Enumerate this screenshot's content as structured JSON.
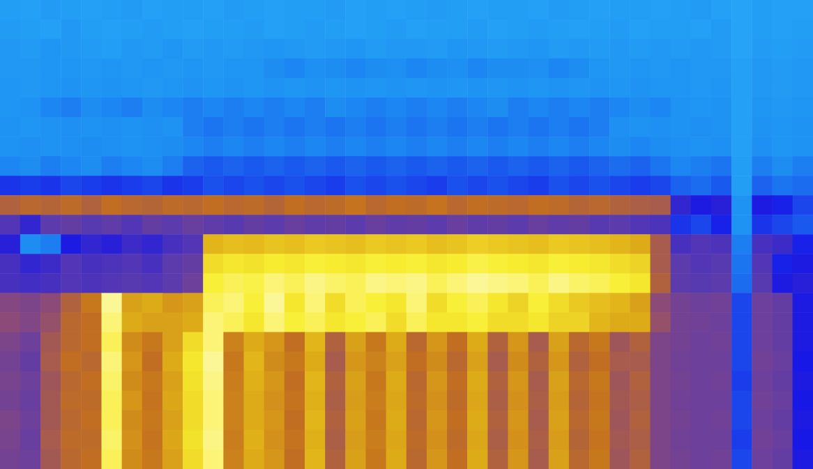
{
  "chart_data": {
    "type": "heatmap",
    "tick_labels": false,
    "zlim": [
      0,
      100
    ],
    "cells": [
      [
        6,
        5,
        7,
        6,
        5,
        6,
        7,
        5,
        6,
        6,
        5,
        7,
        6,
        5,
        6,
        6,
        7,
        5,
        6,
        5,
        6,
        7,
        6,
        5,
        6,
        6,
        5,
        7,
        6,
        5,
        6,
        6,
        5,
        6,
        7,
        5,
        4,
        6,
        5,
        5
      ],
      [
        7,
        6,
        5,
        8,
        6,
        5,
        6,
        7,
        6,
        5,
        6,
        6,
        7,
        5,
        6,
        7,
        6,
        5,
        6,
        7,
        5,
        6,
        6,
        7,
        5,
        6,
        7,
        6,
        5,
        6,
        7,
        5,
        6,
        6,
        5,
        7,
        4,
        6,
        5,
        6
      ],
      [
        8,
        7,
        9,
        8,
        7,
        6,
        8,
        7,
        9,
        7,
        8,
        7,
        8,
        9,
        8,
        7,
        8,
        9,
        7,
        8,
        8,
        7,
        9,
        8,
        7,
        8,
        9,
        7,
        8,
        7,
        8,
        7,
        8,
        7,
        8,
        7,
        4,
        7,
        6,
        7
      ],
      [
        8,
        8,
        9,
        9,
        8,
        9,
        8,
        9,
        8,
        9,
        8,
        9,
        9,
        12,
        13,
        11,
        12,
        13,
        12,
        11,
        13,
        12,
        11,
        13,
        12,
        12,
        11,
        13,
        12,
        9,
        8,
        9,
        8,
        9,
        8,
        8,
        5,
        8,
        7,
        8
      ],
      [
        9,
        8,
        9,
        10,
        9,
        10,
        9,
        8,
        9,
        10,
        9,
        10,
        9,
        10,
        9,
        10,
        9,
        10,
        9,
        10,
        9,
        10,
        9,
        10,
        9,
        10,
        9,
        10,
        9,
        10,
        9,
        10,
        9,
        9,
        8,
        9,
        5,
        8,
        7,
        8
      ],
      [
        9,
        10,
        13,
        14,
        12,
        13,
        14,
        12,
        13,
        14,
        13,
        14,
        13,
        14,
        13,
        14,
        12,
        13,
        14,
        13,
        14,
        13,
        14,
        13,
        12,
        14,
        13,
        14,
        13,
        14,
        13,
        12,
        13,
        10,
        9,
        10,
        5,
        9,
        8,
        9
      ],
      [
        10,
        9,
        10,
        11,
        10,
        11,
        10,
        11,
        10,
        14,
        15,
        14,
        15,
        14,
        15,
        14,
        15,
        14,
        15,
        14,
        15,
        14,
        15,
        14,
        15,
        14,
        15,
        14,
        15,
        14,
        11,
        10,
        11,
        10,
        11,
        10,
        5,
        10,
        9,
        10
      ],
      [
        10,
        11,
        10,
        11,
        12,
        11,
        10,
        11,
        12,
        13,
        14,
        13,
        14,
        13,
        14,
        13,
        14,
        13,
        14,
        13,
        14,
        13,
        14,
        13,
        14,
        13,
        14,
        13,
        14,
        13,
        12,
        13,
        12,
        11,
        10,
        11,
        5,
        11,
        9,
        10
      ],
      [
        13,
        12,
        14,
        13,
        12,
        14,
        13,
        12,
        14,
        17,
        18,
        17,
        18,
        17,
        18,
        17,
        18,
        17,
        18,
        17,
        18,
        17,
        18,
        17,
        18,
        17,
        18,
        17,
        18,
        17,
        16,
        17,
        15,
        13,
        14,
        15,
        6,
        14,
        12,
        14
      ],
      [
        22,
        21,
        22,
        20,
        21,
        22,
        21,
        20,
        22,
        21,
        19,
        20,
        19,
        20,
        19,
        20,
        21,
        19,
        20,
        19,
        20,
        21,
        19,
        20,
        19,
        20,
        21,
        19,
        20,
        19,
        20,
        21,
        20,
        17,
        16,
        18,
        6,
        17,
        15,
        16
      ],
      [
        58,
        60,
        59,
        61,
        58,
        62,
        60,
        59,
        61,
        60,
        62,
        60,
        61,
        59,
        62,
        60,
        61,
        63,
        60,
        62,
        61,
        63,
        60,
        62,
        61,
        60,
        62,
        61,
        59,
        60,
        58,
        57,
        56,
        30,
        26,
        28,
        10,
        26,
        24,
        20
      ],
      [
        36,
        30,
        38,
        40,
        37,
        39,
        36,
        40,
        38,
        41,
        39,
        37,
        40,
        38,
        41,
        39,
        40,
        38,
        41,
        39,
        40,
        38,
        41,
        39,
        40,
        38,
        41,
        39,
        40,
        37,
        38,
        36,
        35,
        22,
        20,
        24,
        10,
        22,
        20,
        18
      ],
      [
        28,
        12,
        14,
        26,
        30,
        28,
        32,
        30,
        34,
        36,
        76,
        78,
        77,
        79,
        78,
        80,
        79,
        78,
        80,
        79,
        80,
        78,
        79,
        81,
        80,
        79,
        78,
        80,
        79,
        78,
        76,
        74,
        56,
        34,
        36,
        35,
        14,
        34,
        32,
        24
      ],
      [
        34,
        30,
        32,
        36,
        34,
        35,
        36,
        34,
        38,
        40,
        84,
        86,
        85,
        87,
        86,
        88,
        87,
        86,
        88,
        87,
        88,
        86,
        87,
        89,
        88,
        87,
        86,
        88,
        87,
        86,
        84,
        82,
        56,
        38,
        36,
        37,
        15,
        36,
        24,
        26
      ],
      [
        34,
        33,
        34,
        36,
        35,
        36,
        37,
        36,
        38,
        42,
        88,
        90,
        89,
        92,
        90,
        93,
        91,
        90,
        93,
        92,
        93,
        90,
        92,
        94,
        93,
        92,
        90,
        93,
        91,
        90,
        88,
        86,
        58,
        38,
        37,
        38,
        16,
        37,
        26,
        28
      ],
      [
        48,
        46,
        50,
        58,
        64,
        94,
        72,
        74,
        70,
        72,
        90,
        92,
        88,
        94,
        86,
        92,
        84,
        90,
        88,
        86,
        92,
        84,
        88,
        90,
        86,
        82,
        88,
        84,
        80,
        78,
        76,
        72,
        50,
        44,
        42,
        43,
        20,
        42,
        40,
        26
      ],
      [
        50,
        47,
        52,
        60,
        62,
        92,
        74,
        72,
        72,
        74,
        92,
        90,
        86,
        92,
        88,
        90,
        86,
        88,
        90,
        84,
        90,
        86,
        86,
        88,
        84,
        84,
        86,
        82,
        82,
        76,
        74,
        74,
        52,
        44,
        43,
        42,
        20,
        42,
        40,
        26
      ],
      [
        46,
        42,
        55,
        60,
        62,
        90,
        68,
        64,
        72,
        84,
        92,
        66,
        74,
        70,
        62,
        76,
        58,
        72,
        64,
        74,
        60,
        70,
        62,
        74,
        58,
        70,
        56,
        72,
        60,
        64,
        54,
        58,
        46,
        44,
        42,
        43,
        20,
        42,
        40,
        26
      ],
      [
        44,
        40,
        56,
        62,
        60,
        92,
        70,
        62,
        74,
        86,
        94,
        64,
        76,
        68,
        64,
        74,
        56,
        70,
        66,
        72,
        62,
        68,
        60,
        72,
        56,
        68,
        58,
        70,
        58,
        62,
        56,
        56,
        46,
        43,
        42,
        42,
        20,
        43,
        41,
        25
      ],
      [
        45,
        42,
        54,
        60,
        62,
        91,
        68,
        64,
        72,
        85,
        93,
        65,
        75,
        70,
        62,
        76,
        58,
        72,
        64,
        74,
        60,
        70,
        62,
        74,
        58,
        70,
        56,
        72,
        60,
        64,
        54,
        58,
        46,
        44,
        42,
        43,
        21,
        42,
        40,
        26
      ],
      [
        44,
        41,
        55,
        61,
        61,
        90,
        70,
        63,
        73,
        84,
        92,
        66,
        74,
        69,
        63,
        75,
        57,
        71,
        65,
        73,
        61,
        69,
        61,
        73,
        57,
        69,
        57,
        71,
        59,
        63,
        55,
        57,
        46,
        43,
        42,
        42,
        20,
        43,
        41,
        25
      ],
      [
        46,
        42,
        55,
        60,
        62,
        90,
        68,
        64,
        72,
        84,
        92,
        66,
        74,
        70,
        62,
        76,
        58,
        72,
        64,
        74,
        60,
        70,
        62,
        74,
        58,
        70,
        56,
        72,
        60,
        64,
        54,
        58,
        46,
        44,
        42,
        43,
        20,
        42,
        40,
        26
      ],
      [
        45,
        41,
        56,
        61,
        61,
        91,
        69,
        63,
        73,
        85,
        93,
        65,
        75,
        69,
        63,
        75,
        57,
        71,
        65,
        73,
        61,
        69,
        61,
        73,
        57,
        69,
        57,
        71,
        59,
        63,
        55,
        57,
        46,
        43,
        42,
        42,
        21,
        43,
        41,
        25
      ],
      [
        44,
        42,
        55,
        60,
        62,
        90,
        68,
        64,
        72,
        84,
        92,
        66,
        74,
        70,
        62,
        76,
        58,
        72,
        64,
        74,
        60,
        70,
        62,
        74,
        58,
        70,
        56,
        72,
        60,
        64,
        54,
        58,
        46,
        44,
        42,
        43,
        20,
        42,
        40,
        26
      ]
    ]
  }
}
